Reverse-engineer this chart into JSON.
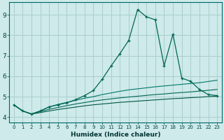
{
  "xlabel": "Humidex (Indice chaleur)",
  "background_color": "#ceeaea",
  "grid_color": "#aacece",
  "line_color_main": "#006655",
  "line_color_flat1": "#007766",
  "line_color_flat2": "#006655",
  "line_color_flat3": "#005544",
  "xlim": [
    -0.5,
    23.5
  ],
  "ylim": [
    3.75,
    9.6
  ],
  "xticks": [
    0,
    1,
    2,
    3,
    4,
    5,
    6,
    7,
    8,
    9,
    10,
    11,
    12,
    13,
    14,
    15,
    16,
    17,
    18,
    19,
    20,
    21,
    22,
    23
  ],
  "yticks": [
    4,
    5,
    6,
    7,
    8,
    9
  ],
  "x": [
    0,
    1,
    2,
    3,
    4,
    5,
    6,
    7,
    8,
    9,
    10,
    11,
    12,
    13,
    14,
    15,
    16,
    17,
    18,
    19,
    20,
    21,
    22,
    23
  ],
  "y_main": [
    4.6,
    4.3,
    4.15,
    4.3,
    4.5,
    4.6,
    4.7,
    4.85,
    5.05,
    5.3,
    5.85,
    6.5,
    7.1,
    7.75,
    9.25,
    8.9,
    8.75,
    6.5,
    8.05,
    5.9,
    5.75,
    5.35,
    5.1,
    5.05
  ],
  "y_flat1": [
    4.6,
    4.3,
    4.15,
    4.3,
    4.5,
    4.62,
    4.72,
    4.82,
    4.92,
    5.0,
    5.1,
    5.18,
    5.26,
    5.33,
    5.38,
    5.43,
    5.48,
    5.52,
    5.56,
    5.6,
    5.64,
    5.68,
    5.74,
    5.8
  ],
  "y_flat2": [
    4.6,
    4.3,
    4.15,
    4.27,
    4.38,
    4.47,
    4.56,
    4.64,
    4.71,
    4.78,
    4.84,
    4.89,
    4.94,
    4.98,
    5.02,
    5.06,
    5.1,
    5.13,
    5.17,
    5.2,
    5.23,
    5.27,
    5.31,
    5.35
  ],
  "y_flat3": [
    4.6,
    4.3,
    4.15,
    4.22,
    4.3,
    4.37,
    4.43,
    4.49,
    4.55,
    4.6,
    4.64,
    4.68,
    4.72,
    4.75,
    4.78,
    4.81,
    4.84,
    4.87,
    4.9,
    4.92,
    4.95,
    4.97,
    5.0,
    5.02
  ]
}
